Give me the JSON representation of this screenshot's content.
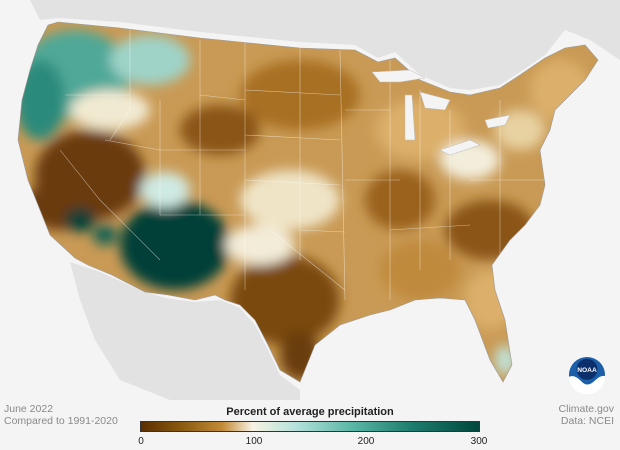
{
  "meta": {
    "date": "June 2022",
    "comparison": "Compared to 1991-2020",
    "source": "Climate.gov",
    "data_source": "Data: NCEI"
  },
  "legend": {
    "title": "Percent of average precipitation",
    "ticks": [
      "0",
      "100",
      "200",
      "300"
    ],
    "colors": [
      "#5a2e00",
      "#8a5a10",
      "#c28a35",
      "#e6c98c",
      "#f7f2e2",
      "#b9e3dc",
      "#5cb8a8",
      "#1e7d6e",
      "#00473d"
    ]
  },
  "logo": {
    "text": "NOAA",
    "icon": "noaa-logo-icon"
  },
  "map": {
    "land_color": "#e9e9e9",
    "outside_color": "#f4f4f4",
    "regions": [
      {
        "name": "west-coast-north",
        "color": "#4fa898"
      },
      {
        "name": "california",
        "color": "#6b3a08"
      },
      {
        "name": "southwest-monsoon",
        "color": "#004038"
      },
      {
        "name": "texas",
        "color": "#7a4a10"
      },
      {
        "name": "great-plains",
        "color": "#b07a2a"
      },
      {
        "name": "southeast",
        "color": "#c79650"
      },
      {
        "name": "northeast",
        "color": "#dcb06a"
      }
    ]
  }
}
